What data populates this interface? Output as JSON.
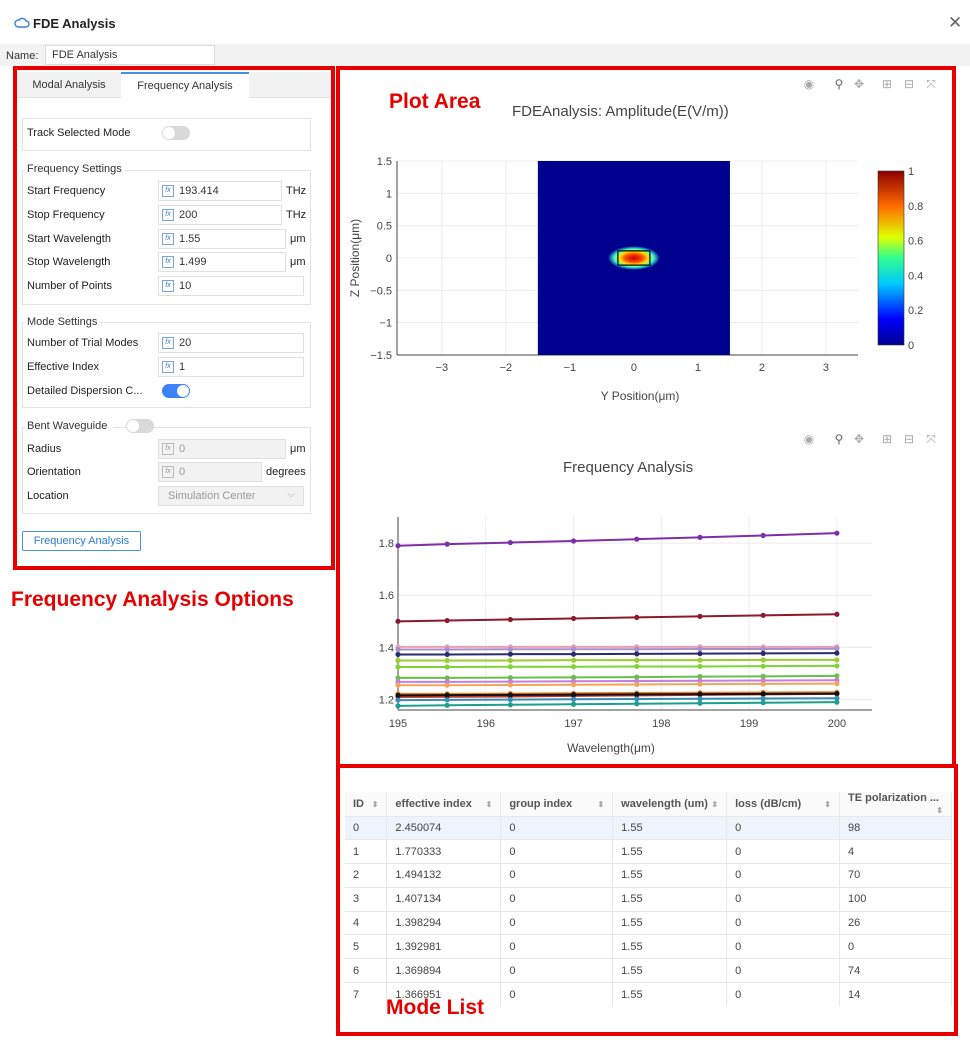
{
  "window": {
    "title": "FDE Analysis",
    "name_label": "Name:",
    "name_value": "FDE Analysis"
  },
  "tabs": {
    "modal": "Modal Analysis",
    "frequency": "Frequency Analysis"
  },
  "track": {
    "label": "Track Selected Mode",
    "on": false
  },
  "frequency_settings": {
    "title": "Frequency Settings",
    "rows": [
      {
        "label": "Start Frequency",
        "value": "193.414",
        "unit": "THz"
      },
      {
        "label": "Stop Frequency",
        "value": "200",
        "unit": "THz"
      },
      {
        "label": "Start Wavelength",
        "value": "1.55",
        "unit": "μm"
      },
      {
        "label": "Stop Wavelength",
        "value": "1.499",
        "unit": "μm"
      },
      {
        "label": "Number of Points",
        "value": "10",
        "unit": ""
      }
    ]
  },
  "mode_settings": {
    "title": "Mode Settings",
    "trial_label": "Number of Trial Modes",
    "trial_value": "20",
    "index_label": "Effective Index",
    "index_value": "1",
    "dispersion_label": "Detailed Dispersion C...",
    "dispersion_on": true
  },
  "bent": {
    "label": "Bent Waveguide",
    "on": false,
    "radius_label": "Radius",
    "radius_value": "0",
    "radius_unit": "μm",
    "orientation_label": "Orientation",
    "orientation_value": "0",
    "orientation_unit": "degrees",
    "location_label": "Location",
    "location_value": "Simulation Center"
  },
  "run_button": "Frequency Analysis",
  "callouts": {
    "options": "Frequency Analysis Options",
    "plot": "Plot Area",
    "list": "Mode List"
  },
  "icons": [
    "camera-icon",
    "zoom-icon",
    "pan-icon",
    "zoom-in-icon",
    "zoom-out-icon",
    "autoscale-icon"
  ],
  "chart_data": [
    {
      "type": "heatmap",
      "title": "FDEAnalysis: Amplitude(E(V/m))",
      "xlabel": "Y Position(μm)",
      "ylabel": "Z Position(μm)",
      "xlim": [
        -3.7,
        3.5
      ],
      "ylim": [
        -1.5,
        1.5
      ],
      "xticks": [
        "−3",
        "−2",
        "−1",
        "0",
        "1",
        "2",
        "3"
      ],
      "yticks": [
        "1.5",
        "1",
        "0.5",
        "0",
        "−0.5",
        "−1",
        "−1.5"
      ],
      "field_region": {
        "y": [
          -1.5,
          1.5
        ],
        "z": [
          -1.5,
          1.5
        ]
      },
      "core": {
        "y": [
          -0.25,
          0.25
        ],
        "z": [
          -0.11,
          0.11
        ]
      },
      "peak": {
        "y": 0,
        "z": 0,
        "value": 1
      },
      "colorbar": {
        "min": 0,
        "max": 1,
        "ticks": [
          "1",
          "0.8",
          "0.6",
          "0.4",
          "0.2",
          "0"
        ]
      },
      "grid": true
    },
    {
      "type": "line",
      "title": "Frequency Analysis",
      "xlabel": "Wavelength(μm)",
      "ylabel": "",
      "xlim": [
        195,
        200.4
      ],
      "ylim": [
        1.16,
        1.9
      ],
      "xticks": [
        "195",
        "196",
        "197",
        "198",
        "199",
        "200"
      ],
      "yticks": [
        "1.8",
        "1.6",
        "1.4",
        "1.2"
      ],
      "x": [
        195,
        195.56,
        196.28,
        197,
        197.72,
        198.44,
        199.16,
        200
      ],
      "series": [
        {
          "color": "#7b2fa8",
          "values": [
            1.79,
            1.796,
            1.802,
            1.808,
            1.815,
            1.822,
            1.829,
            1.838
          ]
        },
        {
          "color": "#8b1a2b",
          "values": [
            1.5,
            1.503,
            1.507,
            1.511,
            1.515,
            1.519,
            1.523,
            1.527
          ]
        },
        {
          "color": "#e8a0b4",
          "values": [
            1.402,
            1.402,
            1.402,
            1.402,
            1.402,
            1.402,
            1.402,
            1.402
          ]
        },
        {
          "color": "#a98fc9",
          "values": [
            1.392,
            1.392,
            1.393,
            1.393,
            1.393,
            1.394,
            1.394,
            1.395
          ]
        },
        {
          "color": "#2a2a72",
          "values": [
            1.373,
            1.373,
            1.374,
            1.374,
            1.375,
            1.376,
            1.377,
            1.378
          ]
        },
        {
          "color": "#9acd32",
          "values": [
            1.35,
            1.35,
            1.35,
            1.351,
            1.351,
            1.351,
            1.352,
            1.352
          ]
        },
        {
          "color": "#7fd437",
          "values": [
            1.325,
            1.325,
            1.326,
            1.326,
            1.327,
            1.327,
            1.328,
            1.329
          ]
        },
        {
          "color": "#6abf4b",
          "values": [
            1.283,
            1.283,
            1.284,
            1.285,
            1.286,
            1.288,
            1.289,
            1.291
          ]
        },
        {
          "color": "#c77ce0",
          "values": [
            1.268,
            1.268,
            1.269,
            1.27,
            1.271,
            1.272,
            1.273,
            1.274
          ]
        },
        {
          "color": "#f2a65a",
          "values": [
            1.255,
            1.255,
            1.256,
            1.257,
            1.258,
            1.259,
            1.26,
            1.261
          ]
        },
        {
          "color": "#e67e22",
          "values": [
            1.222,
            1.222,
            1.223,
            1.224,
            1.225,
            1.226,
            1.227,
            1.228
          ]
        },
        {
          "color": "#c0392b",
          "values": [
            1.21,
            1.211,
            1.212,
            1.214,
            1.216,
            1.218,
            1.22,
            1.222
          ]
        },
        {
          "color": "#111111",
          "values": [
            1.216,
            1.217,
            1.218,
            1.219,
            1.22,
            1.221,
            1.222,
            1.223
          ]
        },
        {
          "color": "#3a8fb7",
          "values": [
            1.198,
            1.199,
            1.2,
            1.201,
            1.202,
            1.203,
            1.204,
            1.205
          ]
        },
        {
          "color": "#1e9e8f",
          "values": [
            1.176,
            1.178,
            1.18,
            1.182,
            1.184,
            1.186,
            1.188,
            1.19
          ]
        }
      ]
    }
  ],
  "table": {
    "headers": [
      "ID",
      "effective index",
      "group index",
      "wavelength (um)",
      "loss (dB/cm)",
      "TE polarization ..."
    ],
    "rows": [
      [
        "0",
        "2.450074",
        "0",
        "1.55",
        "0",
        "98"
      ],
      [
        "1",
        "1.770333",
        "0",
        "1.55",
        "0",
        "4"
      ],
      [
        "2",
        "1.494132",
        "0",
        "1.55",
        "0",
        "70"
      ],
      [
        "3",
        "1.407134",
        "0",
        "1.55",
        "0",
        "100"
      ],
      [
        "4",
        "1.398294",
        "0",
        "1.55",
        "0",
        "26"
      ],
      [
        "5",
        "1.392981",
        "0",
        "1.55",
        "0",
        "0"
      ],
      [
        "6",
        "1.369894",
        "0",
        "1.55",
        "0",
        "74"
      ],
      [
        "7",
        "1.366951",
        "0",
        "1.55",
        "0",
        "14"
      ]
    ]
  }
}
